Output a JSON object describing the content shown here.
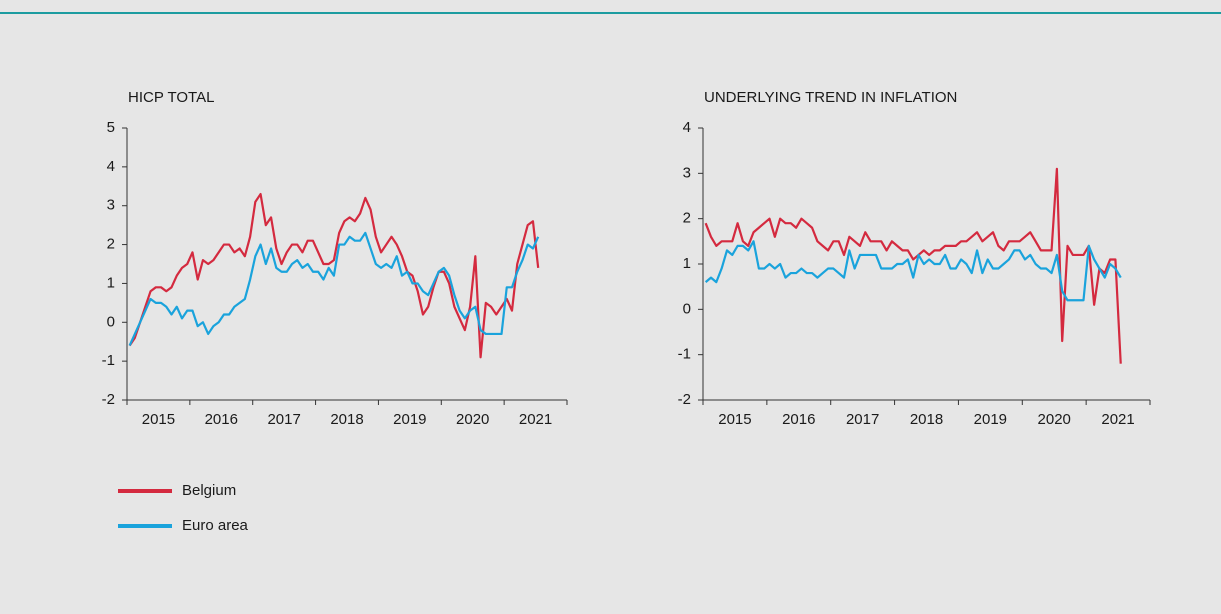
{
  "chart_data": [
    {
      "type": "line",
      "title": "HICP TOTAL",
      "categories": [
        null,
        null,
        null,
        null,
        null,
        null,
        "2015",
        null,
        null,
        null,
        null,
        null,
        null,
        null,
        null,
        null,
        null,
        null,
        "2016",
        null,
        null,
        null,
        null,
        null,
        null,
        null,
        null,
        null,
        null,
        null,
        "2017",
        null,
        null,
        null,
        null,
        null,
        null,
        null,
        null,
        null,
        null,
        null,
        "2018",
        null,
        null,
        null,
        null,
        null,
        null,
        null,
        null,
        null,
        null,
        null,
        "2019",
        null,
        null,
        null,
        null,
        null,
        null,
        null,
        null,
        null,
        null,
        null,
        "2020",
        null,
        null,
        null,
        null,
        null,
        null,
        null,
        null,
        null,
        null,
        null,
        "2021",
        null,
        null,
        null,
        null,
        null
      ],
      "ylim": [
        -2,
        5
      ],
      "yticks": [
        -2,
        -1,
        0,
        1,
        2,
        3,
        4,
        5
      ],
      "series": [
        {
          "name": "Belgium",
          "color": "#d42a3f",
          "values": [
            -0.6,
            -0.4,
            0.0,
            0.4,
            0.8,
            0.9,
            0.9,
            0.8,
            0.9,
            1.2,
            1.4,
            1.5,
            1.8,
            1.1,
            1.6,
            1.5,
            1.6,
            1.8,
            2.0,
            2.0,
            1.8,
            1.9,
            1.7,
            2.2,
            3.1,
            3.3,
            2.5,
            2.7,
            1.9,
            1.5,
            1.8,
            2.0,
            2.0,
            1.8,
            2.1,
            2.1,
            1.8,
            1.5,
            1.5,
            1.6,
            2.3,
            2.6,
            2.7,
            2.6,
            2.8,
            3.2,
            2.9,
            2.2,
            1.8,
            2.0,
            2.2,
            2.0,
            1.7,
            1.3,
            1.2,
            0.8,
            0.2,
            0.4,
            0.9,
            1.3,
            1.3,
            1.0,
            0.4,
            0.1,
            -0.2,
            0.4,
            1.7,
            -0.9,
            0.5,
            0.4,
            0.2,
            0.4,
            0.6,
            0.3,
            1.5,
            2.0,
            2.5,
            2.6,
            1.4,
            null,
            null,
            null,
            null,
            null
          ]
        },
        {
          "name": "Euro area",
          "color": "#1aa3dc",
          "values": [
            -0.6,
            -0.3,
            0.0,
            0.3,
            0.6,
            0.5,
            0.5,
            0.4,
            0.2,
            0.4,
            0.1,
            0.3,
            0.3,
            -0.1,
            0.0,
            -0.3,
            -0.1,
            0.0,
            0.2,
            0.2,
            0.4,
            0.5,
            0.6,
            1.1,
            1.7,
            2.0,
            1.5,
            1.9,
            1.4,
            1.3,
            1.3,
            1.5,
            1.6,
            1.4,
            1.5,
            1.3,
            1.3,
            1.1,
            1.4,
            1.2,
            2.0,
            2.0,
            2.2,
            2.1,
            2.1,
            2.3,
            1.9,
            1.5,
            1.4,
            1.5,
            1.4,
            1.7,
            1.2,
            1.3,
            1.0,
            1.0,
            0.8,
            0.7,
            1.0,
            1.3,
            1.4,
            1.2,
            0.7,
            0.3,
            0.1,
            0.3,
            0.4,
            -0.2,
            -0.3,
            -0.3,
            -0.3,
            -0.3,
            0.9,
            0.9,
            1.3,
            1.6,
            2.0,
            1.9,
            2.2,
            null,
            null,
            null,
            null,
            null
          ]
        }
      ]
    },
    {
      "type": "line",
      "title": "UNDERLYING TREND IN INFLATION",
      "categories": [
        null,
        null,
        null,
        null,
        null,
        null,
        "2015",
        null,
        null,
        null,
        null,
        null,
        null,
        null,
        null,
        null,
        null,
        null,
        "2016",
        null,
        null,
        null,
        null,
        null,
        null,
        null,
        null,
        null,
        null,
        null,
        "2017",
        null,
        null,
        null,
        null,
        null,
        null,
        null,
        null,
        null,
        null,
        null,
        "2018",
        null,
        null,
        null,
        null,
        null,
        null,
        null,
        null,
        null,
        null,
        null,
        "2019",
        null,
        null,
        null,
        null,
        null,
        null,
        null,
        null,
        null,
        null,
        null,
        "2020",
        null,
        null,
        null,
        null,
        null,
        null,
        null,
        null,
        null,
        null,
        null,
        "2021",
        null,
        null,
        null,
        null,
        null
      ],
      "ylim": [
        -2,
        4
      ],
      "yticks": [
        -2,
        -1,
        0,
        1,
        2,
        3,
        4
      ],
      "series": [
        {
          "color": "#d42a3f",
          "values": [
            1.9,
            1.6,
            1.4,
            1.5,
            1.5,
            1.5,
            1.9,
            1.5,
            1.4,
            1.7,
            1.8,
            1.9,
            2.0,
            1.6,
            2.0,
            1.9,
            1.9,
            1.8,
            2.0,
            1.9,
            1.8,
            1.5,
            1.4,
            1.3,
            1.5,
            1.5,
            1.2,
            1.6,
            1.5,
            1.4,
            1.7,
            1.5,
            1.5,
            1.5,
            1.3,
            1.5,
            1.4,
            1.3,
            1.3,
            1.1,
            1.2,
            1.3,
            1.2,
            1.3,
            1.3,
            1.4,
            1.4,
            1.4,
            1.5,
            1.5,
            1.6,
            1.7,
            1.5,
            1.6,
            1.7,
            1.4,
            1.3,
            1.5,
            1.5,
            1.5,
            1.6,
            1.7,
            1.5,
            1.3,
            1.3,
            1.3,
            3.1,
            -0.7,
            1.4,
            1.2,
            1.2,
            1.2,
            1.4,
            0.1,
            0.9,
            0.8,
            1.1,
            1.1,
            -1.2,
            null,
            null,
            null,
            null,
            null
          ]
        },
        {
          "color": "#1aa3dc",
          "values": [
            0.6,
            0.7,
            0.6,
            0.9,
            1.3,
            1.2,
            1.4,
            1.4,
            1.3,
            1.5,
            0.9,
            0.9,
            1.0,
            0.9,
            1.0,
            0.7,
            0.8,
            0.8,
            0.9,
            0.8,
            0.8,
            0.7,
            0.8,
            0.9,
            0.9,
            0.8,
            0.7,
            1.3,
            0.9,
            1.2,
            1.2,
            1.2,
            1.2,
            0.9,
            0.9,
            0.9,
            1.0,
            1.0,
            1.1,
            0.7,
            1.2,
            1.0,
            1.1,
            1.0,
            1.0,
            1.2,
            0.9,
            0.9,
            1.1,
            1.0,
            0.8,
            1.3,
            0.8,
            1.1,
            0.9,
            0.9,
            1.0,
            1.1,
            1.3,
            1.3,
            1.1,
            1.2,
            1.0,
            0.9,
            0.9,
            0.8,
            1.2,
            0.4,
            0.2,
            0.2,
            0.2,
            0.2,
            1.4,
            1.1,
            0.9,
            0.7,
            1.0,
            0.9,
            0.7,
            null,
            null,
            null,
            null,
            null
          ]
        }
      ]
    }
  ]
}
